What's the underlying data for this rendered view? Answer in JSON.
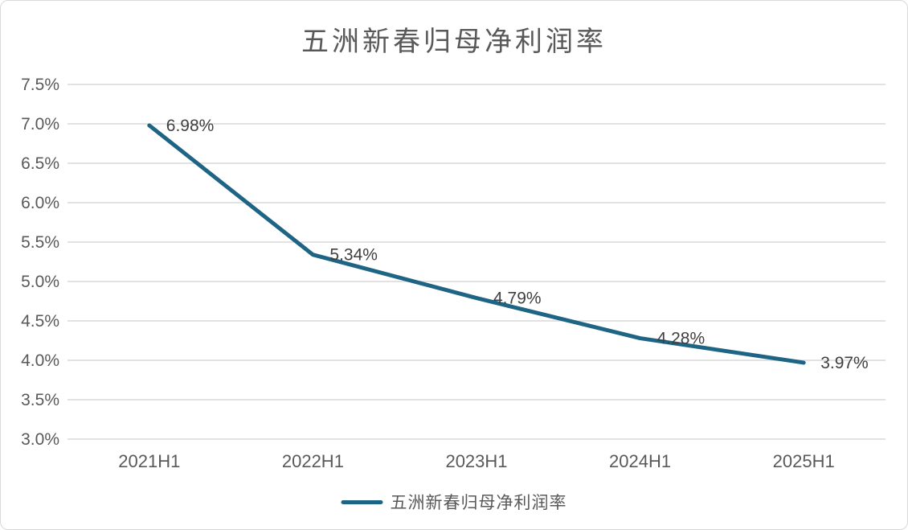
{
  "chart_data": {
    "type": "line",
    "title": "五洲新春归母净利润率",
    "categories": [
      "2021H1",
      "2022H1",
      "2023H1",
      "2024H1",
      "2025H1"
    ],
    "series": [
      {
        "name": "五洲新春归母净利润率",
        "values": [
          6.98,
          5.34,
          4.79,
          4.28,
          3.97
        ]
      }
    ],
    "data_labels": [
      "6.98%",
      "5.34%",
      "4.79%",
      "4.28%",
      "3.97%"
    ],
    "xlabel": "",
    "ylabel": "",
    "ylim": [
      3.0,
      7.5
    ],
    "ytick_step": 0.5,
    "ytick_labels": [
      "3.0%",
      "3.5%",
      "4.0%",
      "4.5%",
      "5.0%",
      "5.5%",
      "6.0%",
      "6.5%",
      "7.0%",
      "7.5%"
    ],
    "grid": true,
    "legend_position": "bottom",
    "colors": {
      "line": "#1E6484",
      "grid": "#D9D9D9",
      "title": "#595959",
      "axis_labels": "#595959",
      "data_labels": "#404040",
      "card_border": "#D9D9D9"
    }
  },
  "legend": {
    "label": "五洲新春归母净利润率"
  }
}
